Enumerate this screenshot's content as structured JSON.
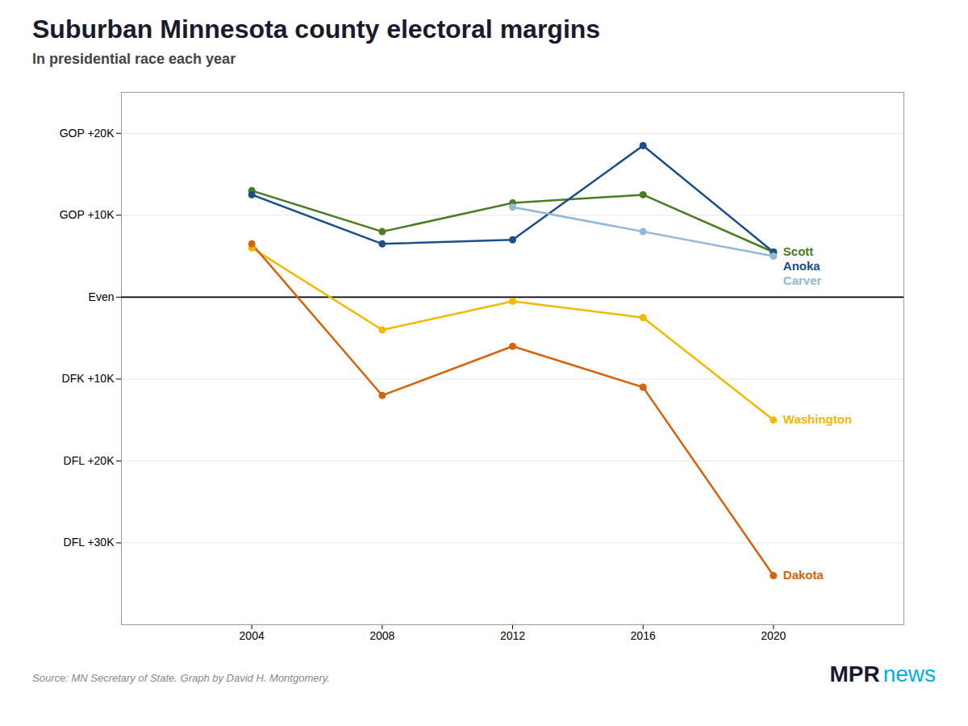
{
  "chart_data": {
    "type": "line",
    "title": "Suburban Minnesota county electoral margins",
    "subtitle": "In presidential race each year",
    "x": [
      2004,
      2008,
      2012,
      2016,
      2020
    ],
    "xlim": [
      2000,
      2024
    ],
    "xticks": [
      2004,
      2008,
      2012,
      2016,
      2020
    ],
    "ylim": [
      -40000,
      25000
    ],
    "yticks": [
      {
        "value": 20000,
        "label": "GOP +20K"
      },
      {
        "value": 10000,
        "label": "GOP +10K"
      },
      {
        "value": 0,
        "label": "Even"
      },
      {
        "value": -10000,
        "label": "DFK +10K"
      },
      {
        "value": -20000,
        "label": "DFL +20K"
      },
      {
        "value": -30000,
        "label": "DFL +30K"
      }
    ],
    "grid": true,
    "marker": "o",
    "series": [
      {
        "name": "Scott",
        "color": "#4a7c23",
        "values": [
          13000,
          8000,
          11500,
          12500,
          5500
        ]
      },
      {
        "name": "Anoka",
        "color": "#1a4e8c",
        "values": [
          12500,
          6500,
          7000,
          18500,
          5500
        ]
      },
      {
        "name": "Carver",
        "color": "#90b8d8",
        "values": [
          null,
          null,
          11000,
          8000,
          5000
        ]
      },
      {
        "name": "Washington",
        "color": "#f5b800",
        "values": [
          6000,
          -4000,
          -500,
          -2500,
          -15000
        ]
      },
      {
        "name": "Dakota",
        "color": "#d9630b",
        "values": [
          6500,
          -12000,
          -6000,
          -11000,
          -34000
        ]
      }
    ],
    "annotations": [
      {
        "text": "Source: MN Secretary of State. Graph by David H. Montgomery."
      },
      {
        "text": "MPR",
        "color": "#1a1a2e"
      },
      {
        "text": "news",
        "color": "#00aeef"
      }
    ]
  }
}
